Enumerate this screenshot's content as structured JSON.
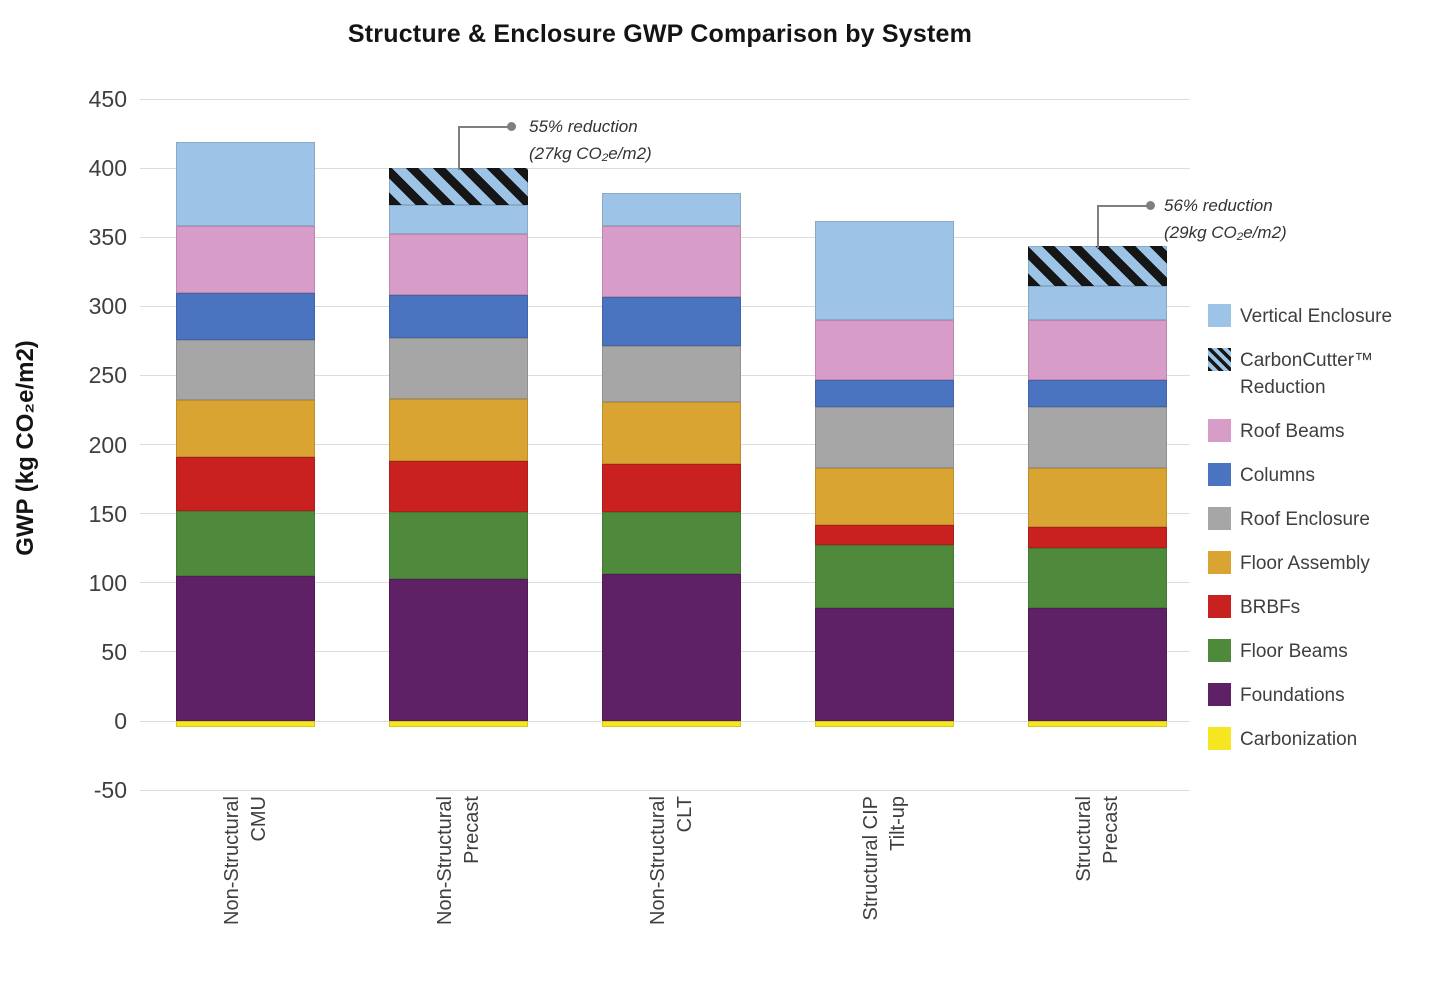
{
  "title": "Structure & Enclosure GWP Comparison by System",
  "y_axis_title": "GWP (kg CO₂e/m2)",
  "chart_data": {
    "type": "bar",
    "stacked": true,
    "title": "Structure & Enclosure GWP Comparison by System",
    "ylabel": "GWP (kg CO₂e/m2)",
    "ylim": [
      -50,
      450
    ],
    "yticks": [
      450,
      400,
      350,
      300,
      250,
      200,
      150,
      100,
      50,
      0,
      -50
    ],
    "grid": true,
    "legend_position": "right",
    "categories": [
      [
        "Non-Structural",
        "CMU"
      ],
      [
        "Non-Structural",
        "Precast"
      ],
      [
        "Non-Structural",
        "CLT"
      ],
      [
        "Structural CIP",
        "Tilt-up"
      ],
      [
        "Structural",
        "Precast"
      ]
    ],
    "series": [
      {
        "name": "Carbonization",
        "color": "#F6E622",
        "hatch": false,
        "values": [
          -4,
          -4,
          -4,
          -4,
          -4
        ]
      },
      {
        "name": "Foundations",
        "color": "#5E2166",
        "hatch": false,
        "values": [
          105,
          103,
          106,
          82,
          82
        ]
      },
      {
        "name": "Floor Beams",
        "color": "#4F8A3C",
        "hatch": false,
        "values": [
          47,
          48,
          45,
          45,
          43
        ]
      },
      {
        "name": "BRBFs",
        "color": "#C8211F",
        "hatch": false,
        "values": [
          39,
          37,
          35,
          15,
          15
        ]
      },
      {
        "name": "Floor Assembly",
        "color": "#D9A431",
        "hatch": false,
        "values": [
          41,
          45,
          45,
          41,
          43
        ]
      },
      {
        "name": "Roof Enclosure",
        "color": "#A6A6A6",
        "hatch": false,
        "values": [
          44,
          44,
          40,
          44,
          44
        ]
      },
      {
        "name": "Columns",
        "color": "#4A73C0",
        "hatch": false,
        "values": [
          34,
          31,
          36,
          20,
          20
        ]
      },
      {
        "name": "Roof Beams",
        "color": "#D89CC8",
        "hatch": false,
        "values": [
          48,
          44,
          51,
          43,
          43
        ]
      },
      {
        "name": "Vertical Enclosure",
        "color": "#9DC3E6",
        "hatch": false,
        "values": [
          61,
          21,
          24,
          72,
          25
        ]
      },
      {
        "name": "CarbonCutter™ Reduction",
        "color": "#9DC3E6",
        "hatch": true,
        "values": [
          0,
          27,
          0,
          0,
          29
        ]
      }
    ],
    "bar_totals": [
      419,
      400,
      382,
      362,
      344
    ],
    "annotations": [
      {
        "bar_index": 1,
        "line1": "55% reduction",
        "line2": "(27kg CO₂e/m2)"
      },
      {
        "bar_index": 4,
        "line1": "56% reduction",
        "line2": "(29kg CO₂e/m2)"
      }
    ]
  },
  "legend": {
    "items": [
      {
        "label": "Vertical Enclosure",
        "label2": "",
        "color": "#9DC3E6",
        "hatch": false
      },
      {
        "label": "CarbonCutter™",
        "label2": "Reduction",
        "color": "#9DC3E6",
        "hatch": true
      },
      {
        "label": "Roof Beams",
        "label2": "",
        "color": "#D89CC8",
        "hatch": false
      },
      {
        "label": "Columns",
        "label2": "",
        "color": "#4A73C0",
        "hatch": false
      },
      {
        "label": "Roof Enclosure",
        "label2": "",
        "color": "#A6A6A6",
        "hatch": false
      },
      {
        "label": "Floor Assembly",
        "label2": "",
        "color": "#D9A431",
        "hatch": false
      },
      {
        "label": "BRBFs",
        "label2": "",
        "color": "#C8211F",
        "hatch": false
      },
      {
        "label": "Floor Beams",
        "label2": "",
        "color": "#4F8A3C",
        "hatch": false
      },
      {
        "label": "Foundations",
        "label2": "",
        "color": "#5E2166",
        "hatch": false
      },
      {
        "label": "Carbonization",
        "label2": "",
        "color": "#F6E622",
        "hatch": false
      }
    ]
  }
}
